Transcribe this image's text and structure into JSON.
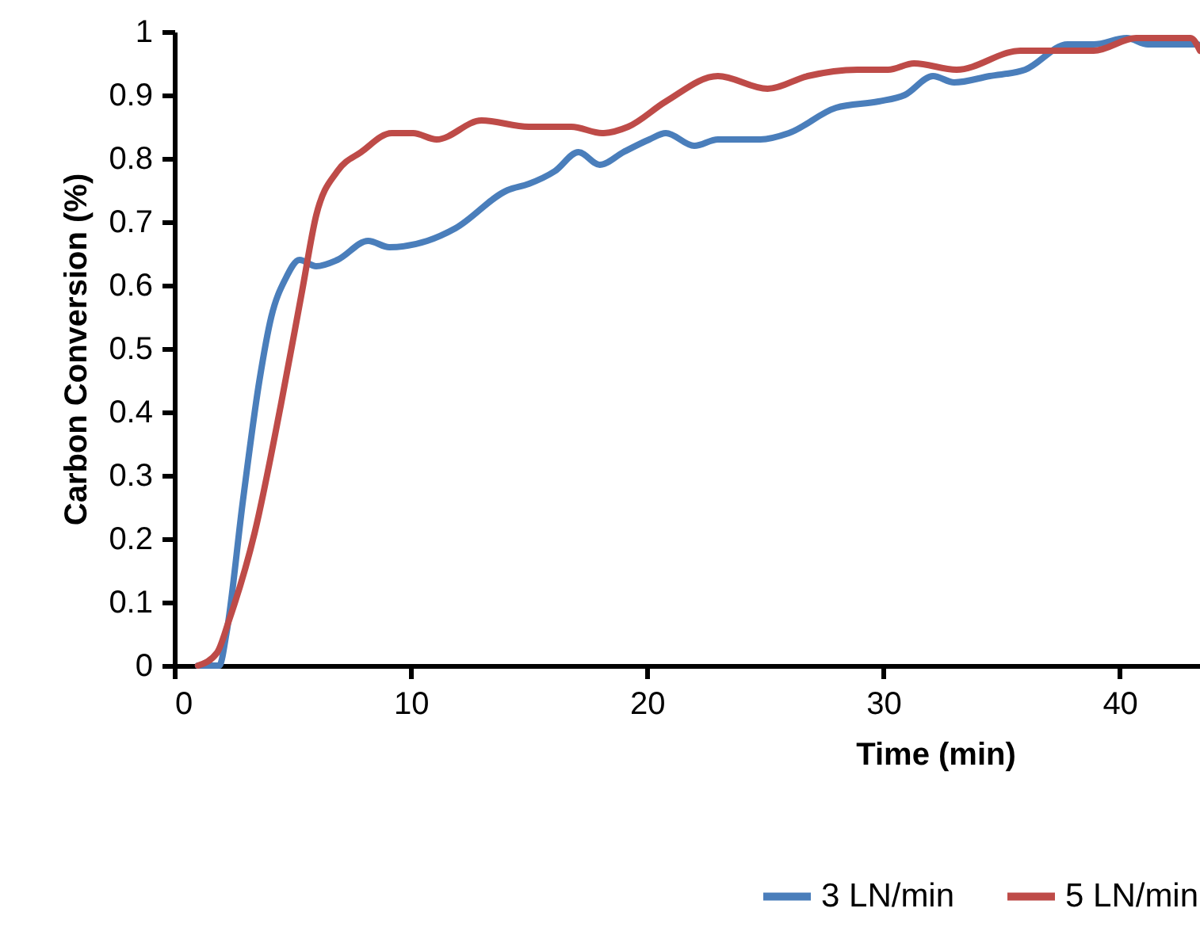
{
  "chart_data": {
    "type": "line",
    "xlabel": "Time (min)",
    "ylabel": "Carbon Conversion (%)",
    "xlim": [
      0,
      43.4
    ],
    "xticks": [
      0,
      10,
      20,
      30,
      40
    ],
    "ylim": [
      0,
      1
    ],
    "yticks": [
      0,
      0.1,
      0.2,
      0.3,
      0.4,
      0.5,
      0.6,
      0.7,
      0.8,
      0.9,
      1
    ],
    "grid": false,
    "legend": "bottom",
    "line_style": "solid",
    "marker": "none",
    "series": [
      {
        "name": "3 LN/min",
        "color": "#4a7ebb",
        "x": [
          1.0,
          1.9,
          2.2,
          2.9,
          3.6,
          4.1,
          4.7,
          5.3,
          6.0,
          6.9,
          8.2,
          9.1,
          10.7,
          11.9,
          14.1,
          15.0,
          16.1,
          17.1,
          18.0,
          19.0,
          20.1,
          20.8,
          22.0,
          23.0,
          24.8,
          26.0,
          28.0,
          29.8,
          30.9,
          32.1,
          33.0,
          34.5,
          36.0,
          37.8,
          38.9,
          40.3,
          41.2,
          43.3
        ],
        "values": [
          0.0,
          0.0,
          0.05,
          0.26,
          0.45,
          0.55,
          0.61,
          0.64,
          0.63,
          0.64,
          0.67,
          0.66,
          0.67,
          0.69,
          0.75,
          0.76,
          0.78,
          0.81,
          0.79,
          0.81,
          0.83,
          0.84,
          0.82,
          0.83,
          0.83,
          0.84,
          0.88,
          0.89,
          0.9,
          0.93,
          0.92,
          0.93,
          0.94,
          0.98,
          0.98,
          0.99,
          0.98,
          0.98
        ]
      },
      {
        "name": "5 LN/min",
        "color": "#be4b48",
        "x": [
          1.0,
          1.8,
          2.3,
          3.4,
          4.5,
          5.4,
          6.0,
          6.9,
          7.9,
          9.2,
          10.1,
          11.1,
          13.0,
          15.0,
          16.8,
          18.1,
          19.2,
          20.8,
          23.0,
          25.1,
          26.8,
          28.9,
          30.2,
          31.3,
          33.1,
          35.8,
          37.1,
          38.9,
          40.7,
          43.0,
          43.4
        ],
        "values": [
          0.0,
          0.02,
          0.07,
          0.21,
          0.41,
          0.59,
          0.71,
          0.78,
          0.81,
          0.84,
          0.84,
          0.83,
          0.86,
          0.85,
          0.85,
          0.84,
          0.85,
          0.89,
          0.93,
          0.91,
          0.93,
          0.94,
          0.94,
          0.95,
          0.94,
          0.97,
          0.97,
          0.97,
          0.99,
          0.99,
          0.97
        ]
      }
    ]
  }
}
